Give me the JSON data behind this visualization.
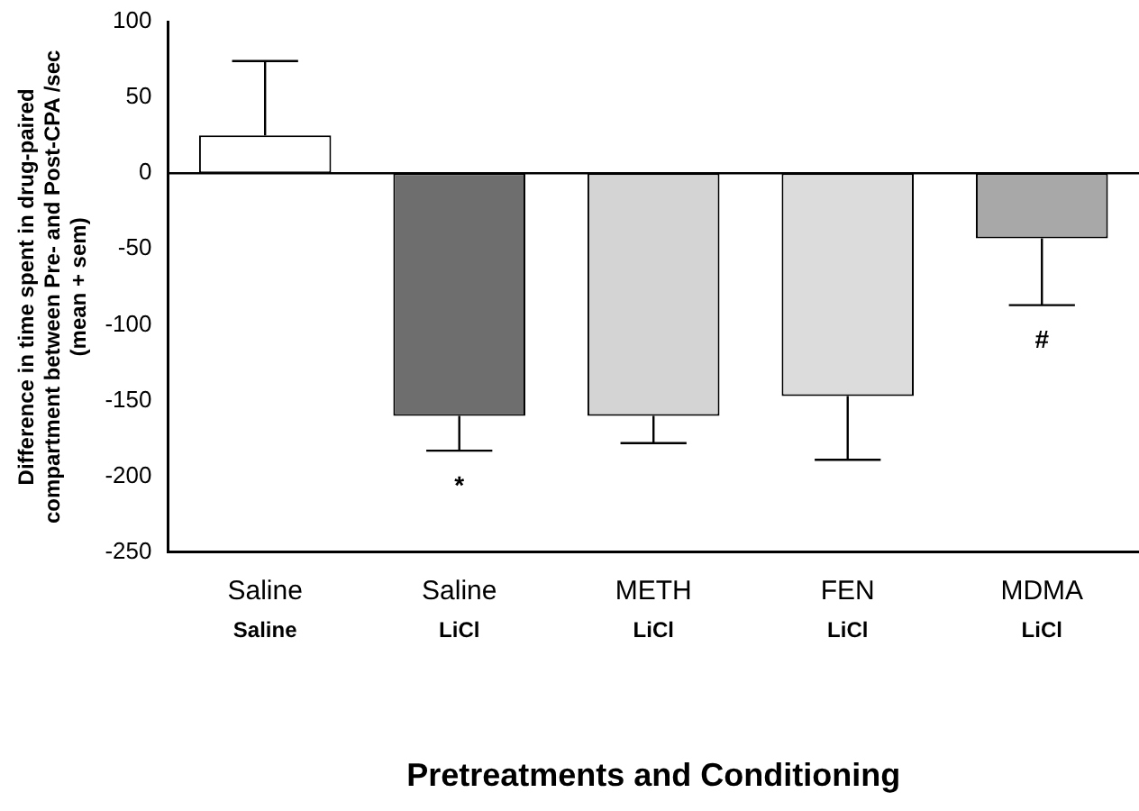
{
  "chart_data": {
    "type": "bar",
    "categories": [
      "Saline\nSaline",
      "Saline\nLiCl",
      "METH\nLiCl",
      "FEN\nLiCl",
      "MDMA\nLiCl"
    ],
    "values": [
      25,
      -160,
      -160,
      -147,
      -43
    ],
    "colors": [
      "#ffffff",
      "#6e6e6e",
      "#d4d4d4",
      "#dcdcdc",
      "#a8a8a8"
    ],
    "errors": [
      [
        25,
        74
      ],
      [
        -183,
        -160
      ],
      [
        -178,
        -160
      ],
      [
        -189,
        -147
      ],
      [
        -87,
        -43
      ]
    ],
    "ylabel": "Difference in time spent in drug-paired\ncompartment between Pre- and Post-CPA /sec\n(mean + sem)",
    "xlabel": "Pretreatments and Conditioning",
    "ylim": [
      -250,
      100
    ],
    "yticks": [
      -250,
      -200,
      -150,
      -100,
      -50,
      0,
      50,
      100
    ],
    "ref_lines": [
      {
        "axis": "y",
        "value": 0,
        "color": "#000000"
      }
    ],
    "annotations": [
      {
        "text": "*",
        "x": "Saline\nLiCl",
        "y": -183
      },
      {
        "text": "#",
        "x": "MDMA\nLiCl",
        "y": -87
      }
    ],
    "grid": false,
    "legend": false
  }
}
